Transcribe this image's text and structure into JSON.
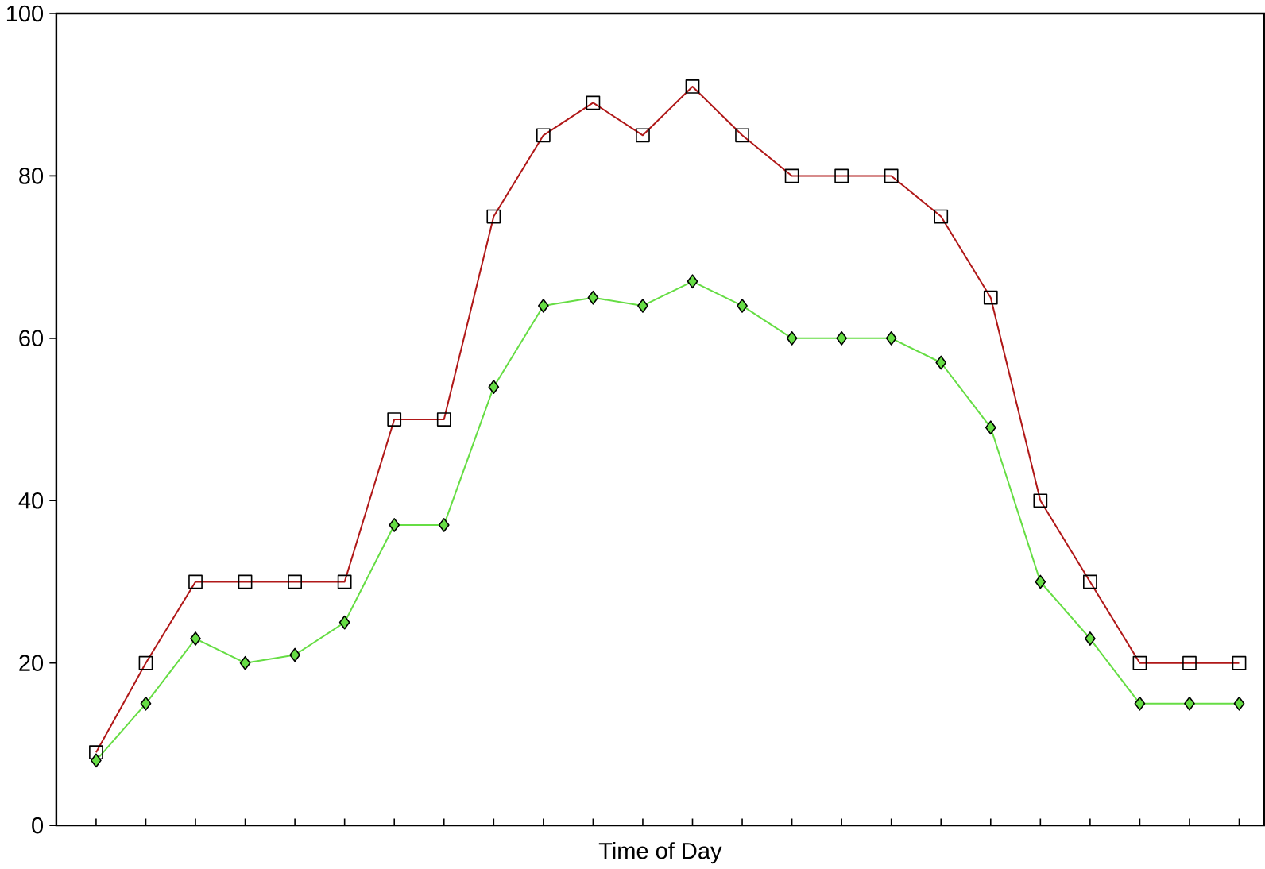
{
  "chart_data": {
    "type": "line",
    "xlabel": "Time of Day",
    "categories": [
      null,
      null,
      null,
      null,
      null,
      null,
      null,
      null,
      null,
      null,
      null,
      null,
      null,
      null,
      null,
      null,
      null,
      null,
      null,
      null,
      null,
      null,
      null,
      null
    ],
    "series": [
      {
        "color": "#b01818",
        "marker": "square",
        "values": [
          9,
          20,
          30,
          30,
          30,
          30,
          50,
          50,
          75,
          85,
          89,
          85,
          91,
          85,
          80,
          80,
          80,
          75,
          65,
          40,
          30,
          20,
          20,
          20
        ]
      },
      {
        "color": "#66dd44",
        "marker": "diamond",
        "values": [
          8,
          15,
          23,
          20,
          21,
          25,
          37,
          37,
          54,
          64,
          65,
          64,
          67,
          64,
          60,
          60,
          60,
          57,
          49,
          30,
          23,
          15,
          15,
          15
        ]
      }
    ],
    "ylim": [
      0,
      100
    ],
    "yticks": [
      0,
      20,
      40,
      60,
      80,
      100
    ],
    "grid": false,
    "line_style": "solid"
  }
}
